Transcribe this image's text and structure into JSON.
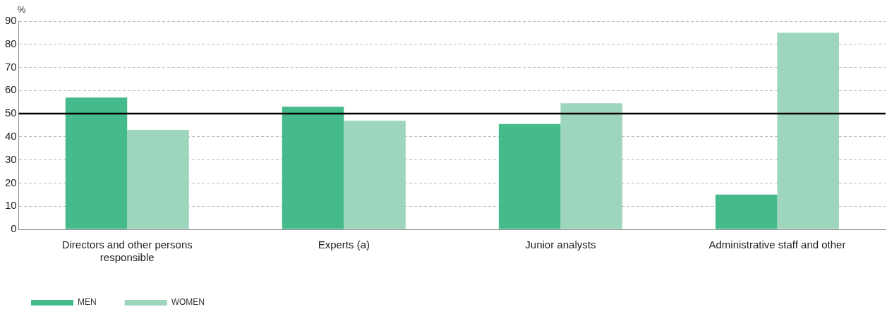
{
  "chart_data": {
    "type": "bar",
    "ylabel": "%",
    "categories": [
      "Directors and other persons responsible",
      "Experts (a)",
      "Junior analysts",
      "Administrative staff and other"
    ],
    "series": [
      {
        "name": "MEN",
        "color": "#45ba8a",
        "values": [
          57,
          53,
          45.5,
          15
        ]
      },
      {
        "name": "WOMEN",
        "color": "#9dd5bd",
        "values": [
          43,
          47,
          54.5,
          85
        ]
      }
    ],
    "ylim": [
      0,
      90
    ],
    "yticks": [
      0,
      10,
      20,
      30,
      40,
      50,
      60,
      70,
      80,
      90
    ],
    "ref_lines": [
      {
        "axis": "y",
        "value": 50,
        "color": "#000000"
      }
    ],
    "grid": "y",
    "legend": "bottom left"
  }
}
